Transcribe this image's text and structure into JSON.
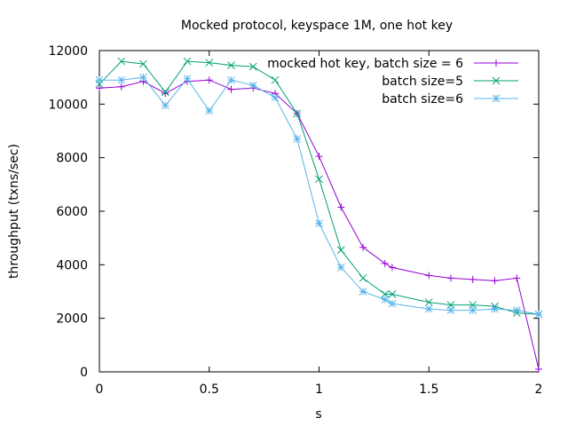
{
  "chart_data": {
    "type": "line",
    "title": "Mocked protocol, keyspace 1M, one hot key",
    "xlabel": "s",
    "ylabel": "throughput (txns/sec)",
    "xlim": [
      0,
      2
    ],
    "ylim": [
      0,
      12000
    ],
    "xticks": [
      0,
      0.5,
      1,
      1.5,
      2
    ],
    "xtick_labels": [
      "0",
      "0.5",
      "1",
      "1.5",
      "2"
    ],
    "yticks": [
      0,
      2000,
      4000,
      6000,
      8000,
      10000,
      12000
    ],
    "ytick_labels": [
      "0",
      "2000",
      "4000",
      "6000",
      "8000",
      "10000",
      "12000"
    ],
    "grid": false,
    "legend_position": "top-right",
    "series": [
      {
        "name": "mocked hot key, batch size = 6",
        "color": "#9400d3",
        "marker": "plus",
        "points": [
          [
            0,
            10600
          ],
          [
            0.1,
            10650
          ],
          [
            0.2,
            10850
          ],
          [
            0.3,
            10400
          ],
          [
            0.4,
            10850
          ],
          [
            0.5,
            10900
          ],
          [
            0.6,
            10550
          ],
          [
            0.7,
            10600
          ],
          [
            0.8,
            10400
          ],
          [
            0.9,
            9650
          ],
          [
            1.0,
            8050
          ],
          [
            1.1,
            6150
          ],
          [
            1.2,
            4650
          ],
          [
            1.3,
            4050
          ],
          [
            1.333,
            3900
          ],
          [
            1.5,
            3600
          ],
          [
            1.6,
            3500
          ],
          [
            1.7,
            3450
          ],
          [
            1.8,
            3400
          ],
          [
            1.9,
            3500
          ],
          [
            2.0,
            100
          ]
        ]
      },
      {
        "name": "batch size=5",
        "color": "#009e73",
        "marker": "cross",
        "points": [
          [
            0,
            10750
          ],
          [
            0.1,
            11600
          ],
          [
            0.2,
            11500
          ],
          [
            0.3,
            10450
          ],
          [
            0.4,
            11600
          ],
          [
            0.5,
            11550
          ],
          [
            0.6,
            11450
          ],
          [
            0.7,
            11400
          ],
          [
            0.8,
            10900
          ],
          [
            0.9,
            9650
          ],
          [
            1.0,
            7200
          ],
          [
            1.1,
            4550
          ],
          [
            1.2,
            3500
          ],
          [
            1.3,
            2900
          ],
          [
            1.333,
            2900
          ],
          [
            1.5,
            2600
          ],
          [
            1.6,
            2500
          ],
          [
            1.7,
            2500
          ],
          [
            1.8,
            2450
          ],
          [
            1.9,
            2200
          ],
          [
            2.0,
            2150
          ]
        ]
      },
      {
        "name": "batch size=6",
        "color": "#56b4e9",
        "marker": "star",
        "points": [
          [
            0,
            10900
          ],
          [
            0.1,
            10900
          ],
          [
            0.2,
            11000
          ],
          [
            0.3,
            9950
          ],
          [
            0.4,
            10950
          ],
          [
            0.5,
            9750
          ],
          [
            0.6,
            10900
          ],
          [
            0.7,
            10700
          ],
          [
            0.8,
            10250
          ],
          [
            0.9,
            8700
          ],
          [
            1.0,
            5550
          ],
          [
            1.1,
            3900
          ],
          [
            1.2,
            3000
          ],
          [
            1.3,
            2700
          ],
          [
            1.333,
            2550
          ],
          [
            1.5,
            2350
          ],
          [
            1.6,
            2300
          ],
          [
            1.7,
            2300
          ],
          [
            1.8,
            2350
          ],
          [
            1.9,
            2300
          ],
          [
            2.0,
            2150
          ]
        ]
      }
    ]
  }
}
